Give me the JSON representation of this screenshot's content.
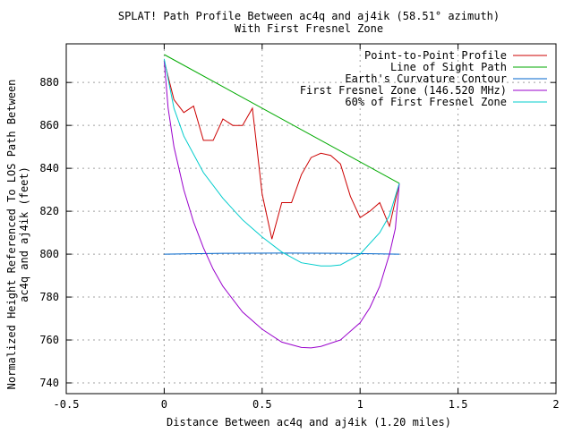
{
  "chart_data": {
    "type": "line",
    "title": "SPLAT! Path Profile Between ac4q and aj4ik (58.51° azimuth)",
    "subtitle": "With First Fresnel Zone",
    "xlabel": "Distance Between ac4q and aj4ik (1.20 miles)",
    "ylabel_line1": "Normalized Height Referenced To LOS Path Between",
    "ylabel_line2": "ac4q and aj4ik (feet)",
    "xlim": [
      -0.5,
      2
    ],
    "ylim": [
      735,
      898
    ],
    "x_ticks": [
      -0.5,
      0,
      0.5,
      1,
      1.5,
      2
    ],
    "x_tick_labels": [
      "-0.5",
      "0",
      "0.5",
      "1",
      "1.5",
      "2"
    ],
    "y_ticks": [
      740,
      760,
      780,
      800,
      820,
      840,
      860,
      880
    ],
    "y_tick_labels": [
      "740",
      "760",
      "780",
      "800",
      "820",
      "840",
      "860",
      "880"
    ],
    "grid": true,
    "legend_position": "top-right",
    "series": [
      {
        "name": "Point-to-Point Profile",
        "color": "#cc0000",
        "x": [
          0.0,
          0.05,
          0.1,
          0.15,
          0.2,
          0.25,
          0.3,
          0.35,
          0.4,
          0.45,
          0.5,
          0.55,
          0.6,
          0.65,
          0.7,
          0.75,
          0.8,
          0.85,
          0.9,
          0.95,
          1.0,
          1.05,
          1.1,
          1.15,
          1.2
        ],
        "y": [
          890,
          872,
          866,
          869,
          853,
          853,
          863,
          860,
          860,
          868,
          828,
          807,
          824,
          824,
          837,
          845,
          847,
          846,
          842,
          827,
          817,
          820,
          824,
          813,
          833
        ]
      },
      {
        "name": "Line of Sight Path",
        "color": "#00aa00",
        "x": [
          0.0,
          1.2
        ],
        "y": [
          893,
          833
        ]
      },
      {
        "name": "Earth's Curvature Contour",
        "color": "#0066cc",
        "x": [
          0.0,
          0.3,
          0.6,
          0.9,
          1.2
        ],
        "y": [
          800,
          800.4,
          800.5,
          800.4,
          800
        ]
      },
      {
        "name": "First Fresnel Zone (146.520 MHz)",
        "color": "#9900cc",
        "x": [
          0.0,
          0.02,
          0.05,
          0.1,
          0.15,
          0.2,
          0.25,
          0.3,
          0.4,
          0.5,
          0.6,
          0.7,
          0.75,
          0.8,
          0.9,
          1.0,
          1.05,
          1.1,
          1.15,
          1.18,
          1.2
        ],
        "y": [
          890,
          868,
          850,
          830,
          815,
          803,
          793,
          785,
          773,
          765,
          759,
          756.5,
          756.3,
          757,
          760,
          768,
          775,
          785,
          800,
          812,
          833
        ]
      },
      {
        "name": "60% of First Fresnel Zone",
        "color": "#00cccc",
        "x": [
          0.0,
          0.05,
          0.1,
          0.2,
          0.3,
          0.4,
          0.5,
          0.6,
          0.7,
          0.8,
          0.85,
          0.9,
          1.0,
          1.1,
          1.15,
          1.2
        ],
        "y": [
          891,
          868,
          855,
          838,
          826,
          816,
          808,
          801,
          796,
          794.5,
          794.5,
          795,
          800,
          810,
          818,
          833
        ]
      }
    ]
  }
}
